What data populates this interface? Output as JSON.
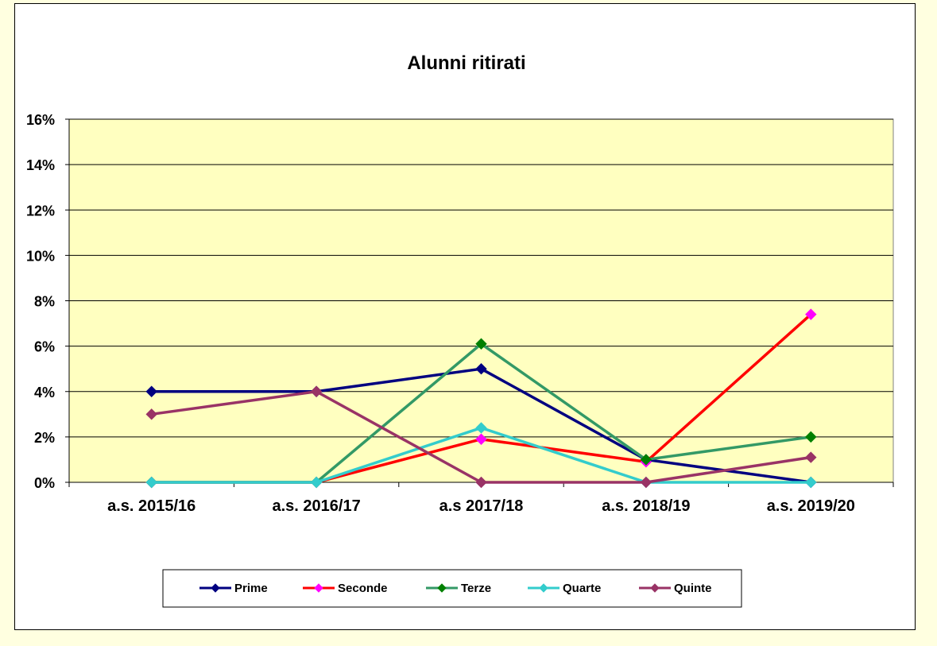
{
  "chart_data": {
    "type": "line",
    "title": "Alunni ritirati",
    "xlabel": "",
    "ylabel": "",
    "categories": [
      "a.s. 2015/16",
      "a.s. 2016/17",
      "a.s  2017/18",
      "a.s. 2018/19",
      "a.s. 2019/20"
    ],
    "ylim": [
      0,
      16
    ],
    "yticks": [
      0,
      2,
      4,
      6,
      8,
      10,
      12,
      14,
      16
    ],
    "ytick_labels": [
      "0%",
      "2%",
      "4%",
      "6%",
      "8%",
      "10%",
      "12%",
      "14%",
      "16%"
    ],
    "y_unit": "%",
    "grid": true,
    "legend_position": "bottom",
    "plot_background": "#ffffc0",
    "series": [
      {
        "name": "Prime",
        "line_color": "#000080",
        "marker_color": "#000080",
        "values": [
          4,
          4,
          5,
          1,
          0
        ]
      },
      {
        "name": "Seconde",
        "line_color": "#ff0000",
        "marker_color": "#ff00ff",
        "values": [
          0,
          0,
          1.9,
          0.9,
          7.4
        ]
      },
      {
        "name": "Terze",
        "line_color": "#339966",
        "marker_color": "#008000",
        "values": [
          0,
          0,
          6.1,
          1,
          2
        ]
      },
      {
        "name": "Quarte",
        "line_color": "#33cccc",
        "marker_color": "#33cccc",
        "values": [
          0,
          0,
          2.4,
          0,
          0
        ]
      },
      {
        "name": "Quinte",
        "line_color": "#993366",
        "marker_color": "#993366",
        "values": [
          3,
          4,
          0,
          0,
          1.1
        ]
      }
    ]
  }
}
